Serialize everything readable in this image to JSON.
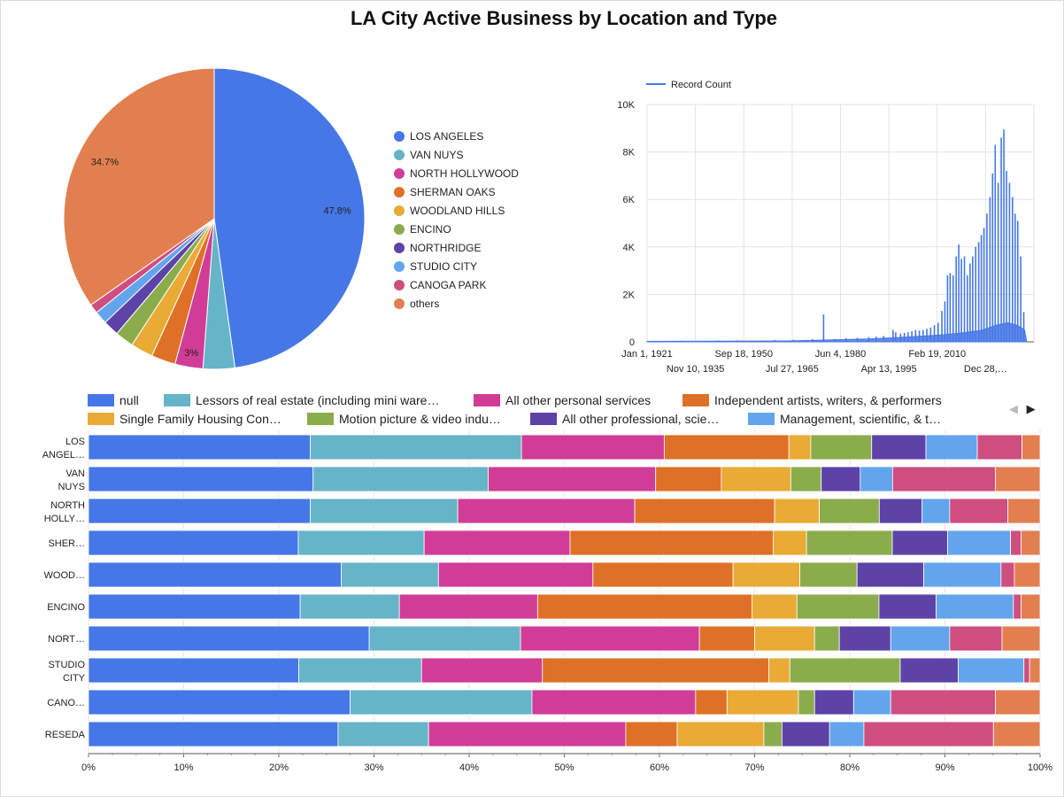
{
  "title": "LA City Active Business by Location and Type",
  "legend_nav": {
    "prev_icon": "◀",
    "next_icon": "▶"
  },
  "chart_data": [
    {
      "type": "pie",
      "labels": [
        "LOS ANGELES",
        "VAN NUYS",
        "NORTH HOLLYWOOD",
        "SHERMAN OAKS",
        "WOODLAND HILLS",
        "ENCINO",
        "NORTHRIDGE",
        "STUDIO CITY",
        "CANOGA PARK",
        "others"
      ],
      "values": [
        47.8,
        3.4,
        3.0,
        2.6,
        2.4,
        2.0,
        1.7,
        1.4,
        1.0,
        34.7
      ],
      "data_labels": [
        "47.8%",
        "",
        "3%",
        "",
        "",
        "",
        "",
        "",
        "",
        "34.7%"
      ],
      "colors": [
        "#4677e6",
        "#66b4c8",
        "#d13d96",
        "#de7127",
        "#e9ab35",
        "#8bac4c",
        "#5d42a8",
        "#63a5ec",
        "#cf4e80",
        "#e27f50"
      ],
      "legend_position": "right"
    },
    {
      "type": "line",
      "legend": "Record Count",
      "color": "#4677e6",
      "x_ticks_top": [
        "Jan 1, 1921",
        "Sep 18, 1950",
        "Jun 4, 1980",
        "Feb 19, 2010"
      ],
      "x_ticks_bottom": [
        "Nov 10, 1935",
        "Jul 27, 1965",
        "Apr 13, 1995",
        "Dec 28,…"
      ],
      "y_ticks": [
        "0",
        "2K",
        "4K",
        "6K",
        "8K",
        "10K"
      ],
      "ylim": [
        0,
        10000
      ],
      "xlim": [
        1921,
        2024
      ],
      "grid": true,
      "peaks": [
        {
          "x": 1923,
          "y": 40
        },
        {
          "x": 1930,
          "y": 50
        },
        {
          "x": 1940,
          "y": 60
        },
        {
          "x": 1945,
          "y": 60
        },
        {
          "x": 1955,
          "y": 80
        },
        {
          "x": 1960,
          "y": 90
        },
        {
          "x": 1965,
          "y": 110
        },
        {
          "x": 1968,
          "y": 1150
        },
        {
          "x": 1971,
          "y": 120
        },
        {
          "x": 1974,
          "y": 150
        },
        {
          "x": 1977,
          "y": 170
        },
        {
          "x": 1980,
          "y": 200
        },
        {
          "x": 1982,
          "y": 220
        },
        {
          "x": 1984,
          "y": 250
        },
        {
          "x": 1986.5,
          "y": 500
        },
        {
          "x": 1987.2,
          "y": 400
        },
        {
          "x": 1988.5,
          "y": 350
        },
        {
          "x": 1989.5,
          "y": 380
        },
        {
          "x": 1990.5,
          "y": 400
        },
        {
          "x": 1991.5,
          "y": 450
        },
        {
          "x": 1992.5,
          "y": 500
        },
        {
          "x": 1993.5,
          "y": 480
        },
        {
          "x": 1994.5,
          "y": 500
        },
        {
          "x": 1995.5,
          "y": 550
        },
        {
          "x": 1996.5,
          "y": 600
        },
        {
          "x": 1997.5,
          "y": 700
        },
        {
          "x": 1998.5,
          "y": 800
        },
        {
          "x": 1999.5,
          "y": 1300
        },
        {
          "x": 2000.3,
          "y": 1700
        },
        {
          "x": 2001,
          "y": 2800
        },
        {
          "x": 2001.7,
          "y": 2900
        },
        {
          "x": 2002.5,
          "y": 2800
        },
        {
          "x": 2003.3,
          "y": 3600
        },
        {
          "x": 2004,
          "y": 4100
        },
        {
          "x": 2004.7,
          "y": 3500
        },
        {
          "x": 2005.5,
          "y": 3600
        },
        {
          "x": 2006.3,
          "y": 2800
        },
        {
          "x": 2007,
          "y": 3300
        },
        {
          "x": 2007.7,
          "y": 3600
        },
        {
          "x": 2008.5,
          "y": 4000
        },
        {
          "x": 2009.3,
          "y": 4200
        },
        {
          "x": 2010,
          "y": 4500
        },
        {
          "x": 2010.7,
          "y": 4800
        },
        {
          "x": 2011.5,
          "y": 5400
        },
        {
          "x": 2012.3,
          "y": 6100
        },
        {
          "x": 2013,
          "y": 7100
        },
        {
          "x": 2013.7,
          "y": 8300
        },
        {
          "x": 2014.5,
          "y": 6700
        },
        {
          "x": 2015.3,
          "y": 8600
        },
        {
          "x": 2016,
          "y": 8950
        },
        {
          "x": 2016.7,
          "y": 7200
        },
        {
          "x": 2017.5,
          "y": 6700
        },
        {
          "x": 2018.3,
          "y": 6100
        },
        {
          "x": 2019,
          "y": 5400
        },
        {
          "x": 2019.7,
          "y": 5100
        },
        {
          "x": 2020.5,
          "y": 3600
        },
        {
          "x": 2021.3,
          "y": 1250
        }
      ],
      "baseline": [
        {
          "x": 1921,
          "y": 20
        },
        {
          "x": 1960,
          "y": 40
        },
        {
          "x": 1980,
          "y": 120
        },
        {
          "x": 1990,
          "y": 200
        },
        {
          "x": 2000,
          "y": 300
        },
        {
          "x": 2005,
          "y": 380
        },
        {
          "x": 2010,
          "y": 480
        },
        {
          "x": 2014,
          "y": 700
        },
        {
          "x": 2017,
          "y": 800
        },
        {
          "x": 2019.5,
          "y": 700
        },
        {
          "x": 2021.5,
          "y": 500
        },
        {
          "x": 2022,
          "y": 80
        }
      ]
    },
    {
      "type": "bar",
      "stacked": "100%",
      "orientation": "horizontal",
      "categories": [
        "LOS ANGEL…",
        "VAN NUYS",
        "NORTH HOLLY…",
        "SHER…",
        "WOOD…",
        "ENCINO",
        "NORT…",
        "STUDIO CITY",
        "CANO…",
        "RESEDA"
      ],
      "category_lines": [
        [
          "LOS",
          "ANGEL…"
        ],
        [
          "VAN",
          "NUYS"
        ],
        [
          "NORTH",
          "HOLLY…"
        ],
        [
          "SHER…"
        ],
        [
          "WOOD…"
        ],
        [
          "ENCINO"
        ],
        [
          "NORT…"
        ],
        [
          "STUDIO",
          "CITY"
        ],
        [
          "CANO…"
        ],
        [
          "RESEDA"
        ]
      ],
      "x_ticks": [
        "0%",
        "10%",
        "20%",
        "30%",
        "40%",
        "50%",
        "60%",
        "70%",
        "80%",
        "90%",
        "100%"
      ],
      "xlim": [
        0,
        100
      ],
      "series": [
        {
          "name": "null",
          "legend_label": "null",
          "color": "#4677e6",
          "values": [
            23.3,
            23.6,
            23.3,
            22.0,
            26.5,
            22.2,
            29.5,
            22.1,
            27.5,
            26.2
          ]
        },
        {
          "name": "Lessors of real estate (including mini warehouses)",
          "legend_label": "Lessors of real estate (including mini ware…",
          "color": "#66b4c8",
          "values": [
            22.2,
            18.4,
            15.5,
            13.2,
            10.2,
            10.4,
            15.9,
            12.9,
            19.1,
            9.5
          ]
        },
        {
          "name": "All other personal services",
          "legend_label": "All other personal services",
          "color": "#d13d96",
          "values": [
            15.0,
            17.6,
            18.6,
            15.3,
            16.2,
            14.5,
            18.8,
            12.7,
            17.2,
            20.7
          ]
        },
        {
          "name": "Independent artists, writers, & performers",
          "legend_label": "Independent artists, writers, & performers",
          "color": "#de7127",
          "values": [
            13.1,
            6.9,
            14.7,
            21.3,
            14.7,
            22.5,
            5.8,
            23.8,
            3.3,
            5.4
          ]
        },
        {
          "name": "Single Family Housing Construction",
          "legend_label": "Single Family Housing Con…",
          "color": "#e9ab35",
          "values": [
            2.3,
            7.3,
            4.7,
            3.5,
            7.0,
            4.7,
            6.3,
            2.2,
            7.5,
            9.1
          ]
        },
        {
          "name": "Motion picture & video industries",
          "legend_label": "Motion picture & video indu…",
          "color": "#8bac4c",
          "values": [
            6.4,
            3.2,
            6.3,
            9.0,
            6.0,
            8.6,
            2.6,
            11.6,
            1.7,
            1.9
          ]
        },
        {
          "name": "All other professional, scientific, & technical services",
          "legend_label": "All other professional, scie…",
          "color": "#5d42a8",
          "values": [
            5.7,
            4.1,
            4.5,
            5.8,
            7.0,
            6.0,
            5.4,
            6.1,
            4.1,
            5.0
          ]
        },
        {
          "name": "Management, scientific, & technical consulting services",
          "legend_label": "Management, scientific, & t…",
          "color": "#63a5ec",
          "values": [
            5.4,
            3.4,
            2.9,
            6.6,
            8.1,
            8.1,
            6.2,
            6.9,
            3.9,
            3.6
          ]
        },
        {
          "name": "CANOGA PARK",
          "color": "#cf4e80",
          "values": [
            4.7,
            10.8,
            6.1,
            1.1,
            1.4,
            0.8,
            5.5,
            0.6,
            11.0,
            13.6
          ]
        },
        {
          "name": "others",
          "color": "#e27f50",
          "values": [
            1.9,
            4.7,
            3.4,
            2.0,
            2.7,
            2.0,
            4.0,
            1.1,
            4.7,
            4.9
          ]
        }
      ],
      "legend_position": "top"
    }
  ]
}
